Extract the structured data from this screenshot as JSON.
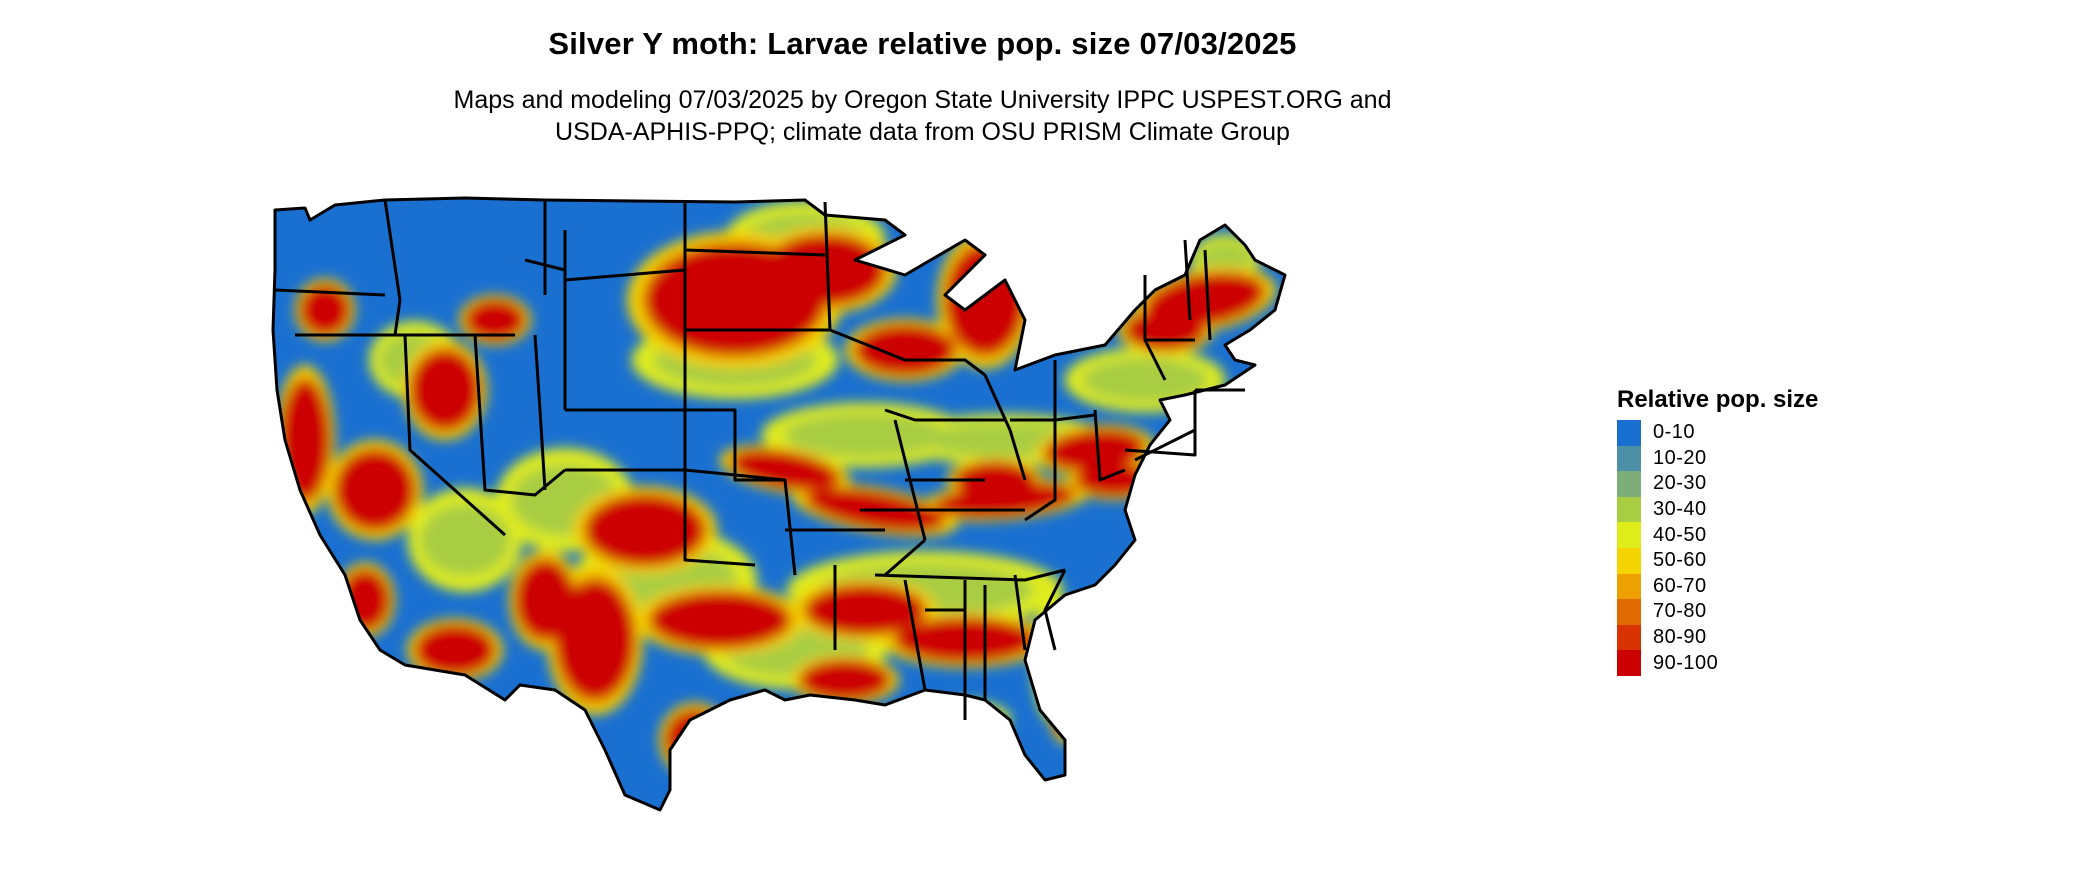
{
  "title": "Silver Y moth: Larvae relative pop. size 07/03/2025",
  "subtitle_line1": "Maps and modeling 07/03/2025 by Oregon State University IPPC USPEST.ORG and",
  "subtitle_line2": "USDA-APHIS-PPQ; climate data from OSU PRISM Climate Group",
  "legend": {
    "title": "Relative pop. size",
    "items": [
      {
        "label": "0-10",
        "color": "#1a70d0"
      },
      {
        "label": "10-20",
        "color": "#4c8fa6"
      },
      {
        "label": "20-30",
        "color": "#7dae7a"
      },
      {
        "label": "30-40",
        "color": "#a9cd42"
      },
      {
        "label": "40-50",
        "color": "#e0ec1a"
      },
      {
        "label": "50-60",
        "color": "#f4d400"
      },
      {
        "label": "60-70",
        "color": "#eda000"
      },
      {
        "label": "70-80",
        "color": "#e06a00"
      },
      {
        "label": "80-90",
        "color": "#d83300"
      },
      {
        "label": "90-100",
        "color": "#cc0000"
      }
    ]
  },
  "map": {
    "region": "Contiguous United States",
    "base_color": "#1a70d0",
    "border_color": "#000000"
  }
}
